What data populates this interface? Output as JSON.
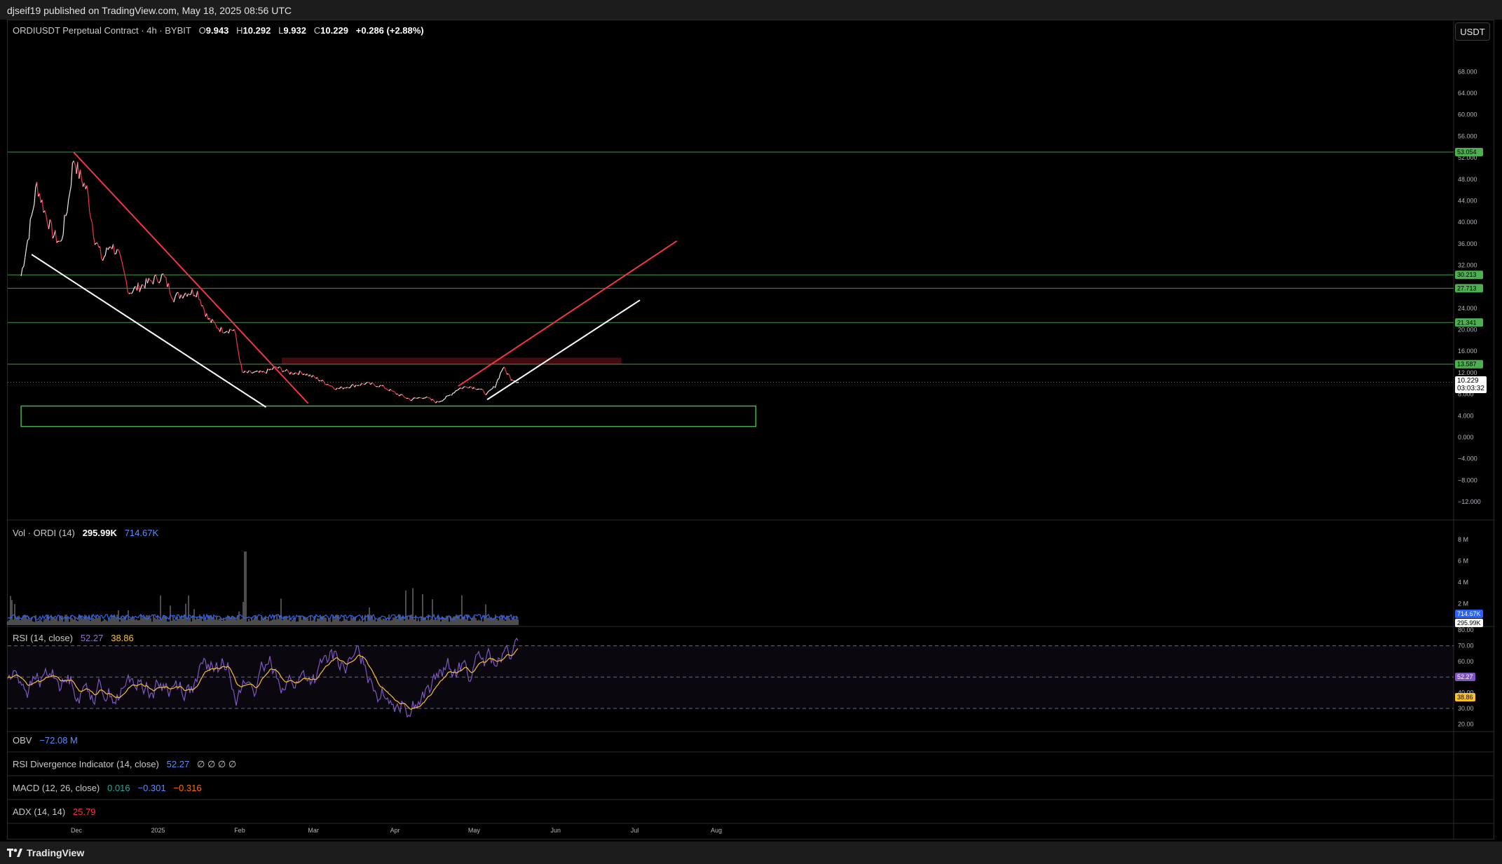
{
  "header": {
    "published": "djseif19 published on TradingView.com, May 18, 2025 08:56 UTC"
  },
  "footer": {
    "brand": "TradingView"
  },
  "unit_button": "USDT",
  "symbol": {
    "title": "ORDIUSDT Perpetual Contract · 4h · BYBIT",
    "open_label": "O",
    "open": "9.943",
    "high_label": "H",
    "high": "10.292",
    "low_label": "L",
    "low": "9.932",
    "close_label": "C",
    "close": "10.229",
    "change": "+0.286 (+2.88%)",
    "last_price": "10.229",
    "countdown": "03:03:32"
  },
  "indicators": {
    "volume": {
      "label": "Vol · ORDI (14)",
      "value": "295.99K",
      "ma": "714.67K"
    },
    "rsi": {
      "label": "RSI (14, close)",
      "value": "52.27",
      "ma": "38.86"
    },
    "obv": {
      "label": "OBV",
      "value": "−72.08 M"
    },
    "rsi_div": {
      "label": "RSI Divergence Indicator (14, close)",
      "value": "52.27",
      "na": "∅  ∅  ∅  ∅"
    },
    "macd": {
      "label": "MACD (12, 26, close)",
      "hist": "0.016",
      "macd": "−0.301",
      "signal": "−0.316"
    },
    "adx": {
      "label": "ADX (14, 14)",
      "value": "25.79"
    }
  },
  "colors": {
    "up": "#e8e8e8",
    "down": "#f23645",
    "level": "#4caf50",
    "volume_ma": "#2962ff",
    "rsi": "#7e57c2",
    "rsi_ma": "#fbc02d"
  },
  "chart_data": [
    {
      "type": "line",
      "subtype": "candlestick",
      "title": "ORDIUSDT Perpetual Contract · 4h · BYBIT",
      "x_ticks": [
        "Dec",
        "2025",
        "Feb",
        "Mar",
        "Apr",
        "May",
        "Jun",
        "Jul",
        "Aug"
      ],
      "x_tick_dates": [
        "2024-12-01",
        "2025-01-01",
        "2025-02-01",
        "2025-03-01",
        "2025-04-01",
        "2025-05-01",
        "2025-06-01",
        "2025-07-01",
        "2025-08-01"
      ],
      "y_ticks": [
        "68.000",
        "64.000",
        "60.000",
        "56.000",
        "52.000",
        "48.000",
        "44.000",
        "40.000",
        "36.000",
        "32.000",
        "24.000",
        "20.000",
        "16.000",
        "12.000",
        "8.000",
        "4.000",
        "0.000",
        "−4.000",
        "−8.000",
        "−12.000"
      ],
      "ylim": [
        -13,
        70
      ],
      "price_path": [
        [
          "2024-11-10",
          30
        ],
        [
          "2024-11-13",
          38
        ],
        [
          "2024-11-16",
          47
        ],
        [
          "2024-11-19",
          42
        ],
        [
          "2024-11-22",
          38
        ],
        [
          "2024-11-25",
          36
        ],
        [
          "2024-11-28",
          44
        ],
        [
          "2024-11-30",
          52
        ],
        [
          "2024-12-02",
          49
        ],
        [
          "2024-12-05",
          46
        ],
        [
          "2024-12-08",
          37
        ],
        [
          "2024-12-11",
          33
        ],
        [
          "2024-12-14",
          36
        ],
        [
          "2024-12-17",
          34
        ],
        [
          "2024-12-21",
          27
        ],
        [
          "2024-12-25",
          28
        ],
        [
          "2024-12-29",
          29
        ],
        [
          "2025-01-03",
          30
        ],
        [
          "2025-01-07",
          26
        ],
        [
          "2025-01-12",
          27
        ],
        [
          "2025-01-16",
          27
        ],
        [
          "2025-01-20",
          22
        ],
        [
          "2025-01-25",
          20
        ],
        [
          "2025-01-30",
          20
        ],
        [
          "2025-02-02",
          12
        ],
        [
          "2025-02-05",
          12
        ],
        [
          "2025-02-10",
          12
        ],
        [
          "2025-02-15",
          13
        ],
        [
          "2025-02-20",
          12
        ],
        [
          "2025-02-25",
          12
        ],
        [
          "2025-03-02",
          11
        ],
        [
          "2025-03-06",
          10
        ],
        [
          "2025-03-10",
          9
        ],
        [
          "2025-03-15",
          9.5
        ],
        [
          "2025-03-21",
          10
        ],
        [
          "2025-03-27",
          9.5
        ],
        [
          "2025-04-02",
          8
        ],
        [
          "2025-04-07",
          7
        ],
        [
          "2025-04-12",
          7.5
        ],
        [
          "2025-04-17",
          6.5
        ],
        [
          "2025-04-21",
          7.5
        ],
        [
          "2025-04-25",
          9
        ],
        [
          "2025-04-29",
          9.5
        ],
        [
          "2025-05-03",
          9
        ],
        [
          "2025-05-06",
          8
        ],
        [
          "2025-05-09",
          9.5
        ],
        [
          "2025-05-12",
          13
        ],
        [
          "2025-05-15",
          11
        ],
        [
          "2025-05-18",
          10.229
        ]
      ],
      "horizontal_levels": [
        {
          "value": 53.054,
          "label": "53.054"
        },
        {
          "value": 30.213,
          "label": "30.213"
        },
        {
          "value": 27.713,
          "label": "27.713"
        },
        {
          "value": 21.341,
          "label": "21.341"
        },
        {
          "value": 13.587,
          "label": "13.587"
        }
      ],
      "last_price": 10.229,
      "zones": [
        {
          "color": "green",
          "x0": "2024-11-10",
          "x1": "2025-08-16",
          "y0": 2.0,
          "y1": 5.8
        },
        {
          "color": "red",
          "x0": "2025-02-17",
          "x1": "2025-06-26",
          "y0": 13.6,
          "y1": 14.8
        }
      ],
      "trendlines": [
        {
          "color": "red",
          "from": [
            "2024-11-30",
            53
          ],
          "to": [
            "2025-02-27",
            6.3
          ]
        },
        {
          "color": "white",
          "from": [
            "2024-11-14",
            34
          ],
          "to": [
            "2025-02-11",
            5.6
          ]
        },
        {
          "color": "red",
          "from": [
            "2025-04-25",
            9.5
          ],
          "to": [
            "2025-07-17",
            36.5
          ]
        },
        {
          "color": "white",
          "from": [
            "2025-05-06",
            7
          ],
          "to": [
            "2025-07-03",
            25.5
          ]
        }
      ]
    },
    {
      "type": "bar",
      "title": "Vol · ORDI (14)",
      "y_ticks": [
        "8 M",
        "6 M",
        "4 M",
        "2 M"
      ],
      "ylim": [
        0,
        9000000
      ],
      "last_value": 295990,
      "ma_value": 714670
    },
    {
      "type": "line",
      "title": "RSI (14, close)",
      "y_ticks": [
        "80.00",
        "70.00",
        "60.00",
        "50.00",
        "40.00",
        "30.00",
        "20.00"
      ],
      "ylim": [
        17,
        81
      ],
      "bands": [
        30,
        50,
        70
      ],
      "last_value": 52.27,
      "ma_value": 38.86
    }
  ]
}
